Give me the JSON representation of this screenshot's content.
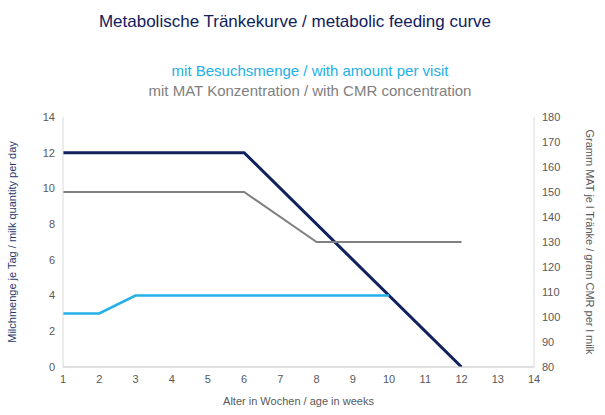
{
  "chart_data": {
    "type": "line",
    "title": "Metabolische Tränkekurve / metabolic feeding curve",
    "x_label": "Alter in Wochen / age in weeks",
    "y_label": "Milchmenge je Tag / milk quantity per day",
    "y2_label": "Gramm MAT je l Tränke / gram CMR per l milk",
    "xlim": [
      1,
      14
    ],
    "xticks": [
      1,
      2,
      3,
      4,
      5,
      6,
      7,
      8,
      9,
      10,
      11,
      12,
      13,
      14
    ],
    "ylim": [
      0,
      14
    ],
    "yticks": [
      0,
      2,
      4,
      6,
      8,
      10,
      12,
      14
    ],
    "y2lim": [
      80,
      180
    ],
    "y2ticks": [
      80,
      90,
      100,
      110,
      120,
      130,
      140,
      150,
      160,
      170,
      180
    ],
    "grid": false,
    "series": [
      {
        "color": "#10215e",
        "x": [
          1,
          6,
          12
        ],
        "values": [
          12,
          12,
          0
        ]
      },
      {
        "name": "mit Besuchsmenge / with amount per visit",
        "color": "#22b0e6",
        "x": [
          1,
          2,
          3,
          10
        ],
        "values": [
          3,
          3,
          4,
          4
        ]
      },
      {
        "name": "mit MAT Konzentration / with CMR concentration",
        "color": "#808080",
        "x": [
          1,
          6,
          8,
          12
        ],
        "values": [
          150,
          150,
          130,
          130
        ],
        "axis": "y2"
      }
    ]
  }
}
